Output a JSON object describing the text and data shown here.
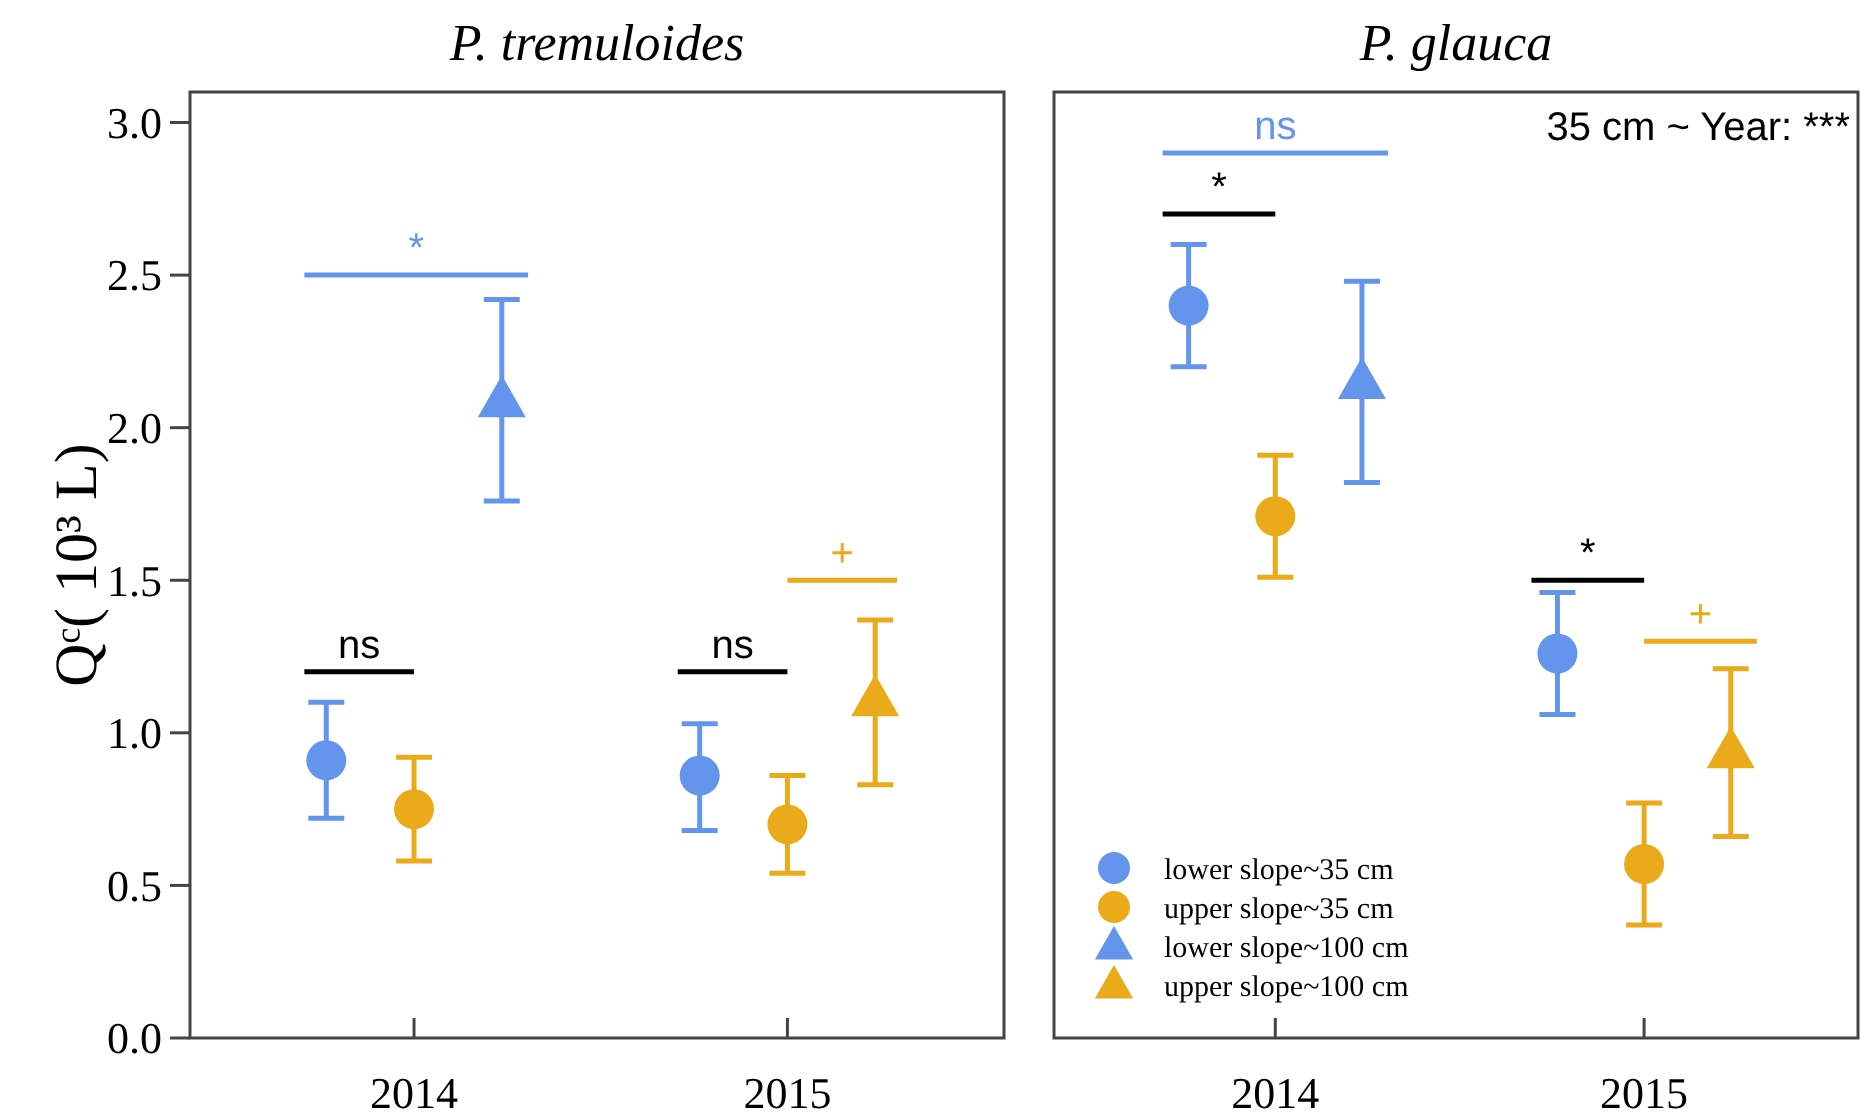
{
  "chart_data": [
    {
      "type": "scatter",
      "title": "P. tremuloides",
      "ylabel": "Qᶜ( 10³ L)",
      "categories": [
        "2014",
        "2015"
      ],
      "ylim": [
        0,
        3.1
      ],
      "yticks": [
        {
          "value": 0,
          "label": "0.0"
        },
        0.5,
        {
          "value": 1,
          "label": "1.0"
        },
        1.5,
        {
          "value": 2,
          "label": "2.0"
        },
        2.5,
        {
          "value": 3,
          "label": "3.0"
        }
      ],
      "grid": false,
      "legend": false,
      "annotations": [
        "ns",
        "*",
        "ns",
        "+"
      ],
      "series": [
        {
          "color": "#6495ed",
          "marker": "circle",
          "values": [
            0.91,
            0.86
          ],
          "errors": [
            [
              0.72,
              1.1
            ],
            [
              0.68,
              1.03
            ]
          ]
        },
        {
          "color": "#eaaa1a",
          "marker": "circle",
          "values": [
            0.75,
            0.7
          ],
          "errors": [
            [
              0.58,
              0.92
            ],
            [
              0.54,
              0.86
            ]
          ]
        },
        {
          "color": "#6495ed",
          "marker": "triangle",
          "values": [
            2.09,
            null
          ],
          "errors": [
            [
              1.76,
              2.42
            ],
            null
          ]
        },
        {
          "color": "#eaaa1a",
          "marker": "triangle",
          "values": [
            null,
            1.11
          ],
          "errors": [
            null,
            [
              0.83,
              1.37
            ]
          ]
        }
      ]
    },
    {
      "type": "scatter",
      "title": "P. glauca",
      "categories": [
        "2014",
        "2015"
      ],
      "ylim": [
        0,
        3.1
      ],
      "tick_labels": "x",
      "grid": false,
      "legend": "bottom left",
      "annotations": [
        "ns",
        "*",
        "*",
        "+",
        "35 cm ~ Year: ***"
      ],
      "series": [
        {
          "name": "lower slope~35 cm",
          "color": "#6495ed",
          "marker": "circle",
          "values": [
            2.4,
            1.26
          ],
          "errors": [
            [
              2.2,
              2.6
            ],
            [
              1.06,
              1.46
            ]
          ]
        },
        {
          "name": "upper slope~35 cm",
          "color": "#eaaa1a",
          "marker": "circle",
          "values": [
            1.71,
            0.57
          ],
          "errors": [
            [
              1.51,
              1.91
            ],
            [
              0.37,
              0.77
            ]
          ]
        },
        {
          "name": "lower slope~100 cm",
          "color": "#6495ed",
          "marker": "triangle",
          "values": [
            2.15,
            null
          ],
          "errors": [
            [
              1.82,
              2.48
            ],
            null
          ]
        },
        {
          "name": "upper slope~100 cm",
          "color": "#eaaa1a",
          "marker": "triangle",
          "values": [
            null,
            0.94
          ],
          "errors": [
            null,
            [
              0.66,
              1.21
            ]
          ]
        }
      ]
    }
  ]
}
